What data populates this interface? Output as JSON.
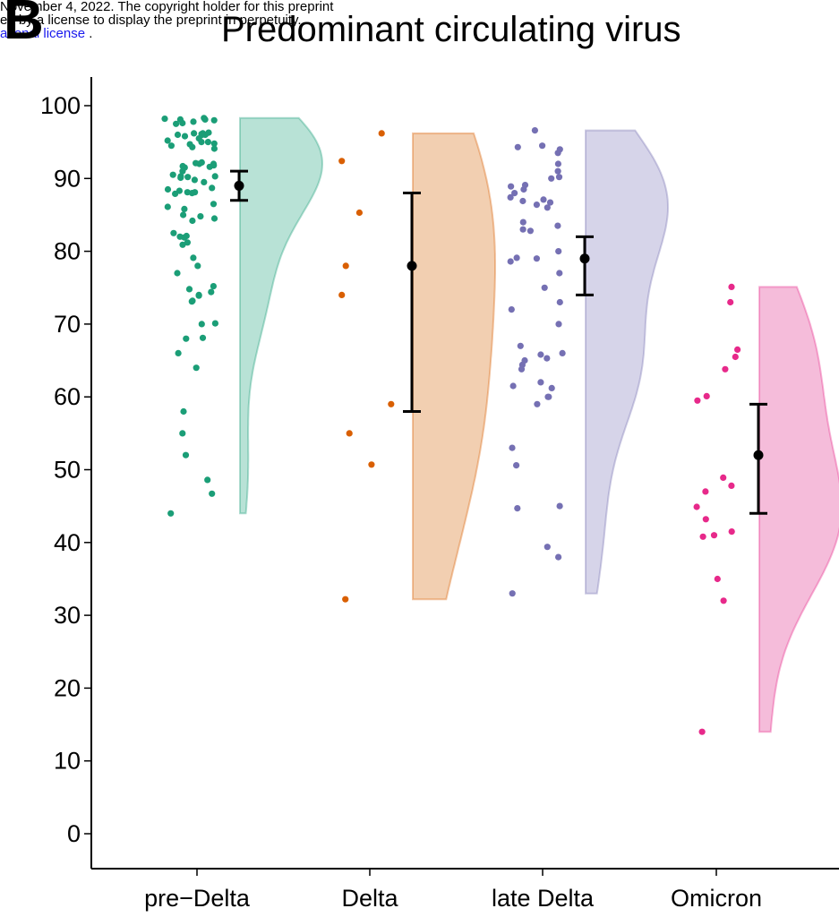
{
  "preprint_notice": {
    "line1": "November 4, 2022. The copyright holder for this preprint",
    "line2": "ed by a license to display the preprint in perpetuity.",
    "line3": "ational license",
    "line3_suffix": " ."
  },
  "panel_letter": "B",
  "chart_data": {
    "type": "raincloud",
    "title": "Predominant circulating virus",
    "xlabel": "",
    "ylabel": "",
    "ylim": [
      -4,
      103
    ],
    "yticks": [
      0,
      10,
      20,
      30,
      40,
      50,
      60,
      70,
      80,
      90,
      100
    ],
    "grid": false,
    "legend": "none",
    "categories": [
      "pre−Delta",
      "Delta",
      "late Delta",
      "Omicron"
    ],
    "colors": [
      "#1b9e77",
      "#d95f02",
      "#7570b3",
      "#e7298a"
    ],
    "fill_colors": [
      "#b8e2d6",
      "#f2cfb1",
      "#d6d4e9",
      "#f5bcda"
    ],
    "summary": [
      {
        "center": 89,
        "lower": 87,
        "upper": 91
      },
      {
        "center": 78,
        "lower": 58,
        "upper": 88
      },
      {
        "center": 79,
        "lower": 74,
        "upper": 82
      },
      {
        "center": 52,
        "lower": 44,
        "upper": 59
      }
    ],
    "points": [
      [
        98.2,
        98,
        98.1,
        97.5,
        98.3,
        97.8,
        97.6,
        98.1,
        96,
        96.2,
        96.1,
        95.5,
        96.3,
        96,
        95.8,
        96.2,
        96,
        95.2,
        95,
        94.7,
        94.8,
        95,
        94.5,
        94.3,
        94.1,
        92.2,
        92,
        92.1,
        91.8,
        92,
        91.5,
        91.7,
        91.6,
        91,
        90.5,
        90.3,
        90.2,
        90.1,
        90.3,
        89.8,
        89.5,
        88.7,
        88.5,
        88.3,
        88.1,
        88,
        88.1,
        87.9,
        86.5,
        86.1,
        85.8,
        85,
        84.8,
        84.5,
        84.2,
        82.5,
        82.1,
        82,
        81.9,
        81.2,
        80.9,
        79.1,
        78,
        77,
        75.2,
        74.8,
        74.4,
        74,
        73.9,
        73.2,
        73.1,
        70,
        70.1,
        68,
        68.1,
        66,
        64,
        58,
        55,
        52,
        48.6,
        46.7,
        44
      ],
      [
        96.2,
        92.4,
        85.3,
        78,
        74,
        59,
        55,
        50.7,
        32.2
      ],
      [
        96.6,
        94.5,
        94.3,
        94,
        93.5,
        92,
        91,
        90.2,
        90,
        89.1,
        88.9,
        88.5,
        88,
        87.4,
        87.1,
        86.9,
        86.7,
        86.4,
        86,
        84,
        83.5,
        83,
        82.8,
        80,
        79.1,
        79,
        78.6,
        77,
        75,
        73,
        72,
        70,
        67,
        66,
        65.8,
        65.3,
        65,
        64.4,
        63.8,
        62,
        61.5,
        61.2,
        60,
        60,
        59,
        53,
        50.6,
        45,
        44.7,
        39.4,
        38,
        33
      ],
      [
        75.1,
        73,
        66.5,
        65.5,
        63.8,
        60.1,
        59.5,
        48.9,
        47.8,
        47,
        44.9,
        43.2,
        41.5,
        41,
        40.8,
        35,
        32,
        14
      ]
    ]
  }
}
